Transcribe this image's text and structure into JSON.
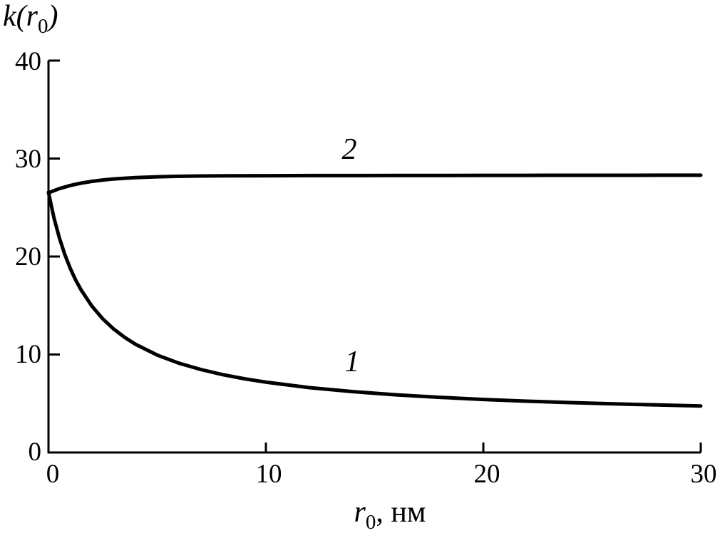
{
  "labels": {
    "y_title_main": "k(r",
    "y_title_sub": "0",
    "y_title_close": ")",
    "x_title_main": "r",
    "x_title_sub": "0",
    "x_title_rest": ", нм"
  },
  "chart_data": {
    "type": "line",
    "title": "",
    "xlabel": "r₀, нм",
    "ylabel": "k(r₀)",
    "xlim": [
      0,
      30
    ],
    "ylim": [
      0,
      40
    ],
    "x_tick_values": [
      0,
      10,
      20,
      30
    ],
    "x_tick_labels": [
      "0",
      "10",
      "20",
      "30"
    ],
    "y_tick_values": [
      0,
      10,
      20,
      30,
      40
    ],
    "y_tick_labels": [
      "0",
      "10",
      "20",
      "30",
      "40"
    ],
    "grid": false,
    "line_color": "#000000",
    "background_color": "#ffffff",
    "series": [
      {
        "name": "1",
        "points": [
          [
            0,
            26.55
          ],
          [
            0.25,
            23.97
          ],
          [
            0.5,
            21.9
          ],
          [
            0.75,
            20.21
          ],
          [
            1,
            18.8
          ],
          [
            1.25,
            17.61
          ],
          [
            1.5,
            16.59
          ],
          [
            2,
            14.93
          ],
          [
            2.5,
            13.63
          ],
          [
            3,
            12.6
          ],
          [
            3.5,
            11.75
          ],
          [
            4,
            11.05
          ],
          [
            5,
            9.94
          ],
          [
            6,
            9.11
          ],
          [
            7,
            8.47
          ],
          [
            8,
            7.95
          ],
          [
            9,
            7.53
          ],
          [
            10,
            7.18
          ],
          [
            12,
            6.62
          ],
          [
            14,
            6.21
          ],
          [
            16,
            5.88
          ],
          [
            18,
            5.63
          ],
          [
            20,
            5.41
          ],
          [
            22,
            5.24
          ],
          [
            24,
            5.09
          ],
          [
            26,
            4.96
          ],
          [
            28,
            4.85
          ],
          [
            30,
            4.75
          ]
        ]
      },
      {
        "name": "2",
        "points": [
          [
            0,
            26.5
          ],
          [
            0.5,
            26.93
          ],
          [
            1,
            27.25
          ],
          [
            1.5,
            27.49
          ],
          [
            2,
            27.67
          ],
          [
            2.5,
            27.81
          ],
          [
            3,
            27.92
          ],
          [
            4,
            28.06
          ],
          [
            5,
            28.14
          ],
          [
            6,
            28.19
          ],
          [
            7,
            28.22
          ],
          [
            8,
            28.24
          ],
          [
            10,
            28.25
          ],
          [
            12,
            28.26
          ],
          [
            14,
            28.26
          ],
          [
            16,
            28.27
          ],
          [
            18,
            28.27
          ],
          [
            20,
            28.28
          ],
          [
            22,
            28.28
          ],
          [
            24,
            28.29
          ],
          [
            26,
            28.29
          ],
          [
            28,
            28.3
          ],
          [
            30,
            28.3
          ]
        ]
      }
    ]
  }
}
